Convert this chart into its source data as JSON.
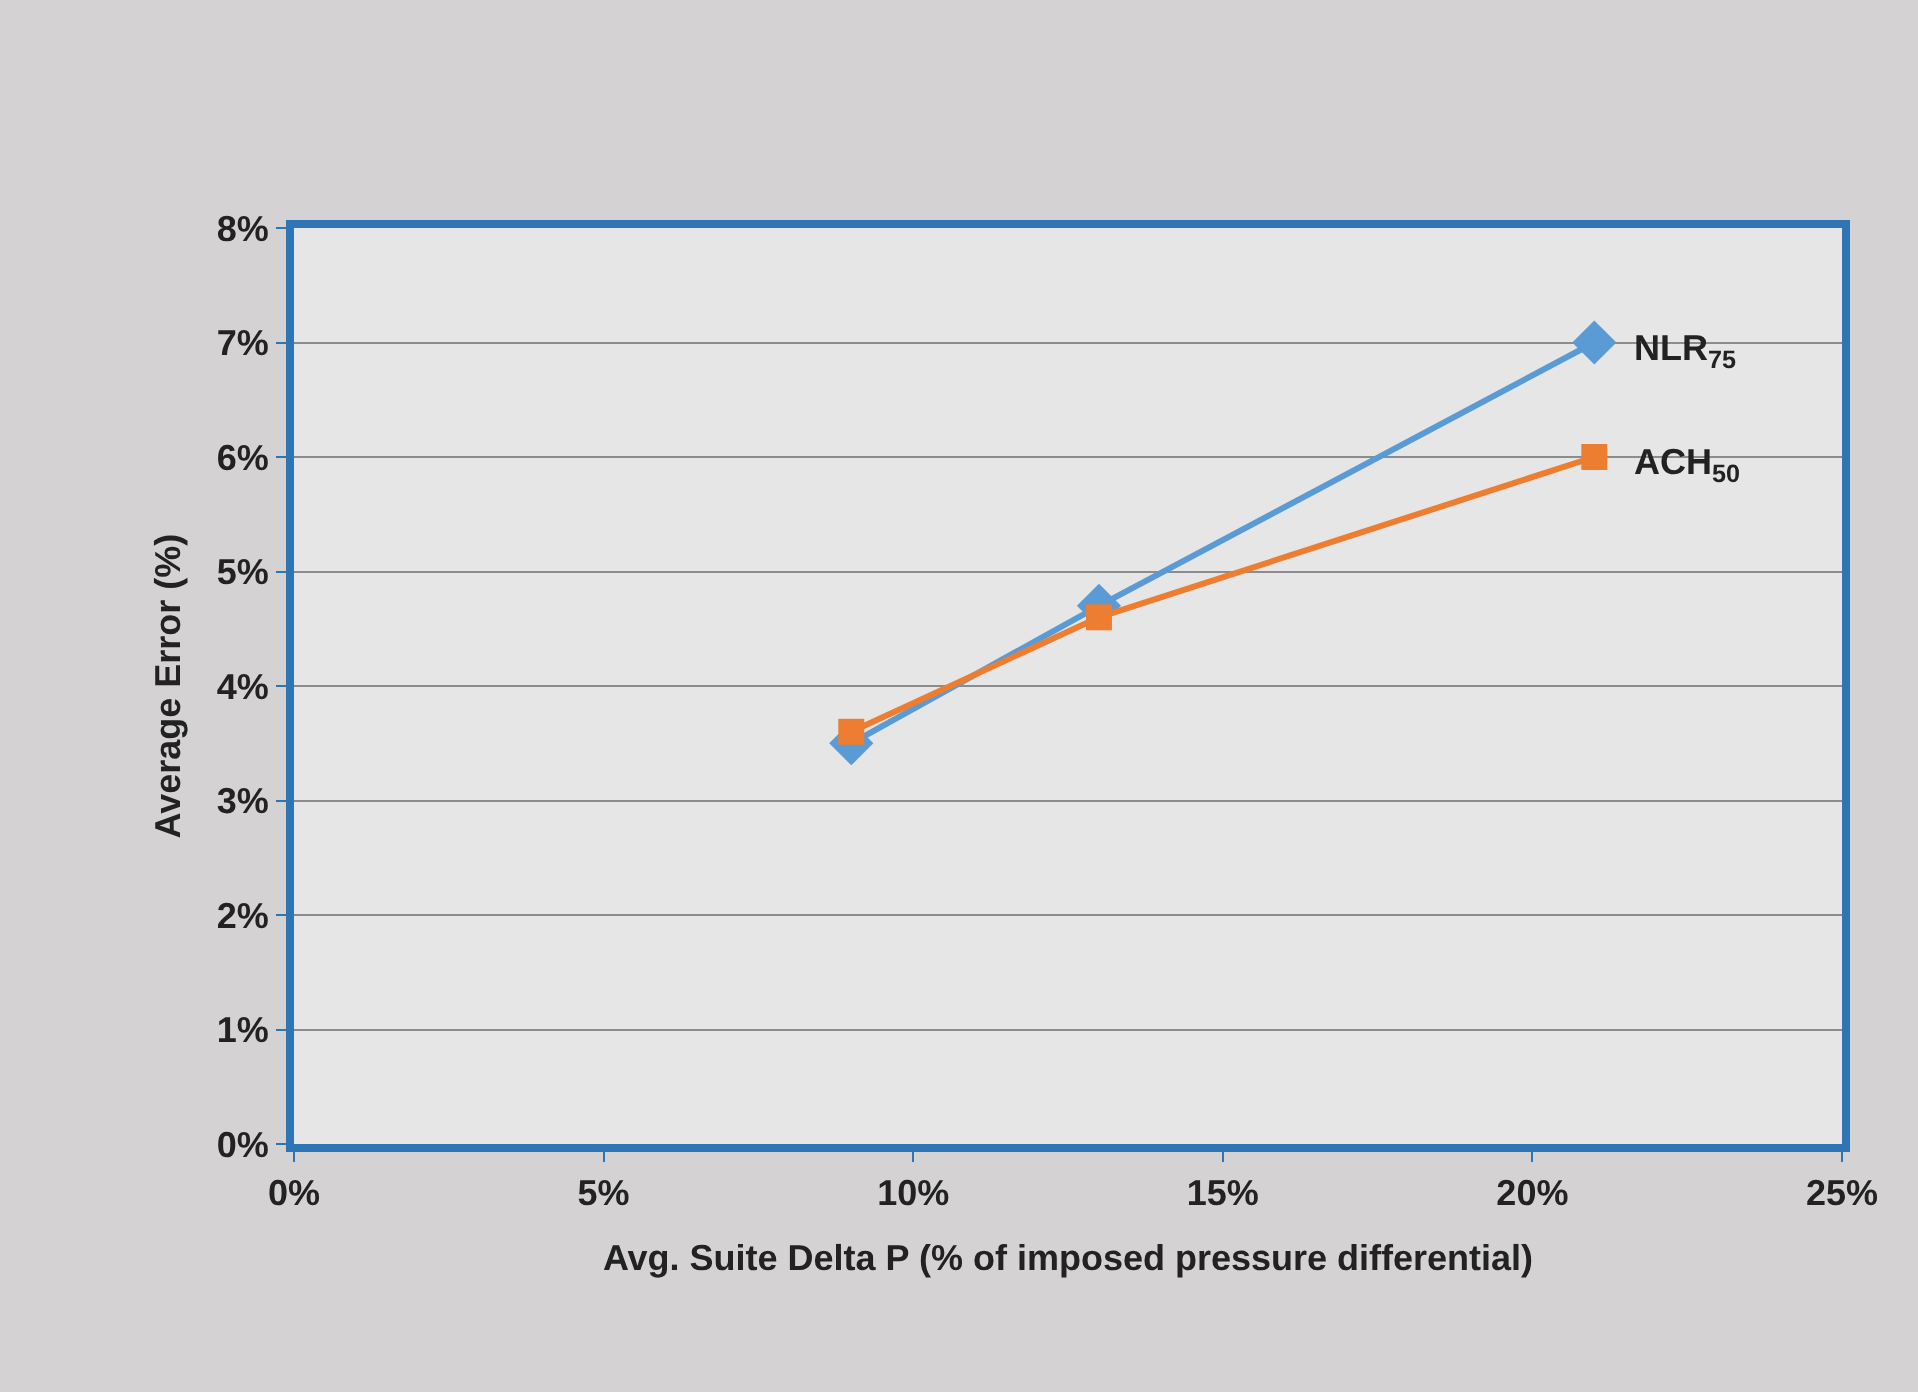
{
  "chart_data": {
    "type": "line",
    "xlabel": "Avg. Suite Delta P (% of imposed pressure differential)",
    "ylabel": "Average Error (%)",
    "series": [
      {
        "name": "NLR$_{75}$",
        "color": "#5b9bd5",
        "marker": "diamond",
        "x": [
          9,
          13,
          21
        ],
        "values": [
          3.5,
          4.7,
          7.0
        ]
      },
      {
        "name": "ACH$_{50}$",
        "color": "#ed7d31",
        "marker": "square",
        "x": [
          9,
          13,
          21
        ],
        "values": [
          3.6,
          4.6,
          6.0
        ]
      }
    ],
    "xlim": [
      0,
      25
    ],
    "xticks": [
      {
        "value": 0,
        "label": "0%"
      },
      {
        "value": 5,
        "label": "5%"
      },
      {
        "value": 10,
        "label": "10%"
      },
      {
        "value": 15,
        "label": "15%"
      },
      {
        "value": 20,
        "label": "20%"
      },
      {
        "value": 25,
        "label": "25%"
      }
    ],
    "ylim": [
      0,
      8
    ],
    "yticks": [
      {
        "value": 0,
        "label": "0%"
      },
      {
        "value": 1,
        "label": "1%"
      },
      {
        "value": 2,
        "label": "2%"
      },
      {
        "value": 3,
        "label": "3%"
      },
      {
        "value": 4,
        "label": "4%"
      },
      {
        "value": 5,
        "label": "5%"
      },
      {
        "value": 6,
        "label": "6%"
      },
      {
        "value": 7,
        "label": "7%"
      },
      {
        "value": 8,
        "label": "8%"
      }
    ],
    "grid": "y",
    "legend": false,
    "line_style": "solid"
  }
}
